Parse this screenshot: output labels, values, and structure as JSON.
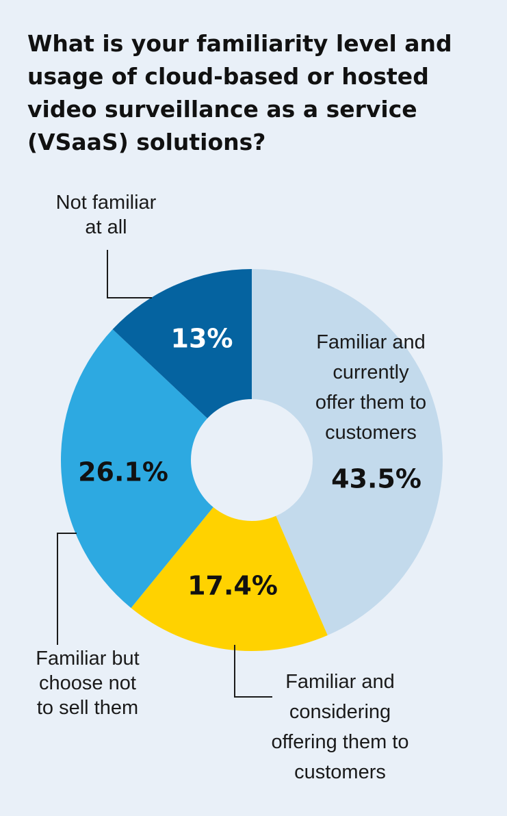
{
  "title_lines": [
    "What is your familiarity level and",
    "usage of cloud-based or hosted",
    "video surveillance as a service",
    "(VSaaS) solutions?"
  ],
  "chart_data": {
    "type": "pie",
    "title": "What is your familiarity level and usage of cloud-based or hosted video surveillance as a service (VSaaS) solutions?",
    "donut": true,
    "slices": [
      {
        "label": "Familiar and currently offer them to customers",
        "value": 43.5,
        "value_label": "43.5%",
        "color": "#c3daec",
        "label_color": "#111111"
      },
      {
        "label": "Familiar and considering offering them to customers",
        "value": 17.4,
        "value_label": "17.4%",
        "color": "#ffd200",
        "label_color": "#111111"
      },
      {
        "label": "Familiar but choose not to sell them",
        "value": 26.1,
        "value_label": "26.1%",
        "color": "#2da9e1",
        "label_color": "#111111"
      },
      {
        "label": "Not familiar at all",
        "value": 13,
        "value_label": "13%",
        "color": "#0563a0",
        "label_color": "#ffffff"
      }
    ]
  },
  "category_labels": {
    "offer": [
      "Familiar and",
      "currently",
      "offer them to",
      "customers"
    ],
    "considering": [
      "Familiar and",
      "considering",
      "offering them to",
      "customers"
    ],
    "not_sell": [
      "Familiar but",
      "choose not",
      "to sell them"
    ],
    "not_familiar": [
      "Not familiar",
      "at all"
    ]
  }
}
